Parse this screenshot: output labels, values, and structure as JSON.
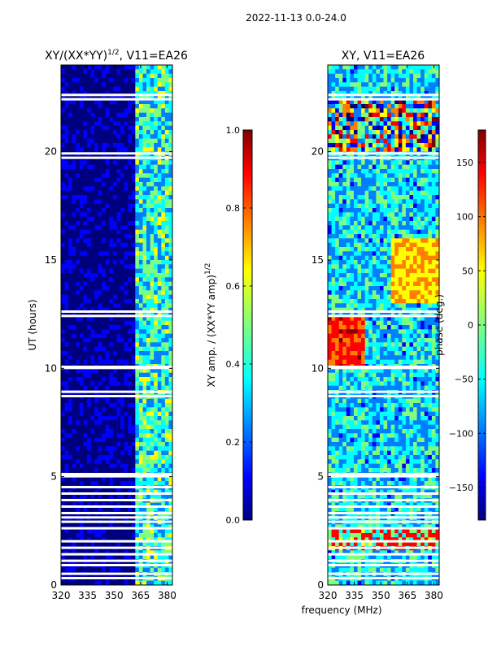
{
  "suptitle": "2022-11-13 0.0-24.0",
  "xlabel_shared": "frequency (MHz)",
  "chart_data": [
    {
      "type": "heatmap",
      "title_main": "XY/(XX*YY)",
      "title_exp": "1/2",
      "title_rest": ", V11=EA26",
      "xlabel": "",
      "ylabel": "UT (hours)",
      "xlim": [
        320,
        383
      ],
      "ylim": [
        0,
        24
      ],
      "xticks": [
        320,
        335,
        350,
        365,
        380
      ],
      "yticks": [
        0,
        5,
        10,
        15,
        20
      ],
      "colorbar": {
        "label_main": "XY amp. / (XX*YY amp)",
        "label_exp": "1/2",
        "range": [
          0.0,
          1.0
        ],
        "ticks": [
          "0.0",
          "0.2",
          "0.4",
          "0.6",
          "0.8",
          "1.0"
        ],
        "tick_values": [
          0.0,
          0.2,
          0.4,
          0.6,
          0.8,
          1.0
        ],
        "colormap": "jet"
      },
      "description_bands": [
        {
          "freq_range": [
            320,
            361
          ],
          "level": 0.05
        },
        {
          "freq_range": [
            361,
            383
          ],
          "level": 0.35
        }
      ],
      "gaps_hours": [
        0.3,
        0.5,
        0.9,
        1.1,
        1.4,
        1.7,
        2.0,
        2.6,
        2.9,
        3.1,
        3.3,
        3.6,
        3.9,
        4.2,
        4.5,
        5.0,
        5.1,
        8.7,
        8.9,
        10.0,
        10.05,
        12.4,
        12.6,
        19.7,
        19.9,
        22.4,
        22.6
      ]
    },
    {
      "type": "heatmap",
      "title_main": "XY, V11=EA26",
      "xlabel": "frequency (MHz)",
      "ylabel": "",
      "xlim": [
        320,
        383
      ],
      "ylim": [
        0,
        24
      ],
      "xticks": [
        320,
        335,
        350,
        365,
        380
      ],
      "yticks": [
        0,
        5,
        10,
        15,
        20
      ],
      "colorbar": {
        "label": "phase (deg.)",
        "range": [
          -180,
          180
        ],
        "ticks": [
          "−150",
          "−100",
          "−50",
          "0",
          "50",
          "100",
          "150"
        ],
        "tick_values": [
          -150,
          -100,
          -50,
          0,
          50,
          100,
          150
        ],
        "colormap": "jet"
      },
      "gaps_hours": [
        0.3,
        0.5,
        0.9,
        1.1,
        1.4,
        1.7,
        2.0,
        2.6,
        2.9,
        3.1,
        3.3,
        3.6,
        3.9,
        4.2,
        4.5,
        5.0,
        5.1,
        8.7,
        8.9,
        10.0,
        10.05,
        12.4,
        12.6,
        19.7,
        19.9,
        22.4,
        22.6
      ]
    }
  ],
  "colors": {
    "jet": [
      "#00007f",
      "#0000ff",
      "#007fff",
      "#00ffff",
      "#7fff7f",
      "#ffff00",
      "#ff7f00",
      "#ff0000",
      "#7f0000"
    ]
  }
}
